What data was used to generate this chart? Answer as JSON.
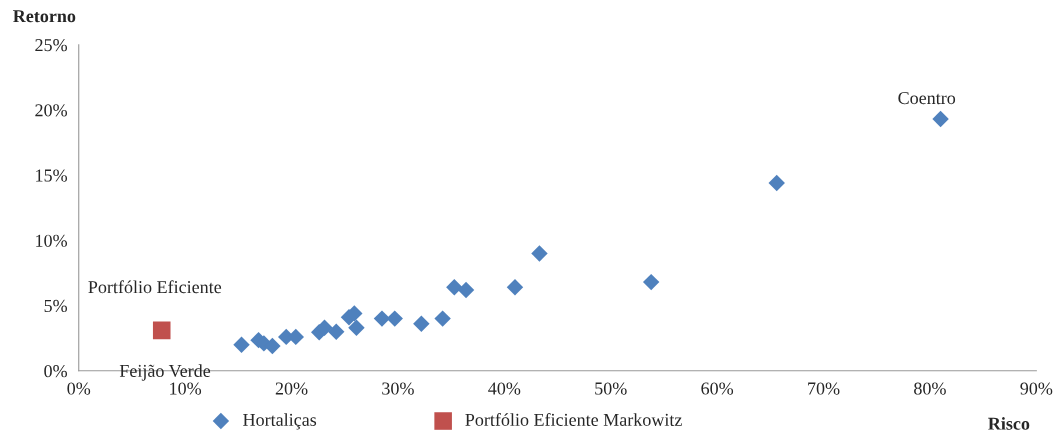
{
  "chart_data": {
    "type": "scatter",
    "xlabel": "Risco",
    "ylabel": "Retorno",
    "legend": "bottom",
    "grid": false,
    "series": [
      {
        "name": "Hortaliças",
        "color": "#4f81bd",
        "marker": "diamond",
        "x": [
          15.3,
          16.9,
          17.4,
          18.2,
          19.5,
          20.4,
          22.6,
          23.1,
          24.2,
          25.4,
          25.9,
          26.1,
          28.5,
          29.7,
          32.2,
          34.2,
          35.3,
          36.4,
          41.0,
          43.3,
          53.8,
          65.6,
          81.0
        ],
        "values": [
          2.0,
          2.35,
          2.1,
          1.9,
          2.6,
          2.6,
          2.95,
          3.3,
          3.0,
          4.1,
          4.4,
          3.3,
          4.0,
          4.0,
          3.6,
          4.0,
          6.4,
          6.2,
          6.4,
          9.0,
          6.8,
          14.4,
          19.3
        ]
      },
      {
        "name": "Portfólio Eficiente Markowitz",
        "color": "#c0504d",
        "marker": "square",
        "x": [
          7.8
        ],
        "values": [
          3.1
        ]
      }
    ],
    "annotations": [
      {
        "text": "Coentro",
        "x": 81.0,
        "y": 19.3
      },
      {
        "text": "Portfólio Eficiente",
        "x": 7.8,
        "y": 3.1
      },
      {
        "text": "Feijão Verde",
        "x": 15.3,
        "y": 2.0
      }
    ],
    "xlim": [
      0,
      90
    ],
    "xticks": [
      {
        "value": 0,
        "label": "0%"
      },
      {
        "value": 10,
        "label": "10%"
      },
      {
        "value": 20,
        "label": "20%"
      },
      {
        "value": 30,
        "label": "30%"
      },
      {
        "value": 40,
        "label": "40%"
      },
      {
        "value": 50,
        "label": "50%"
      },
      {
        "value": 60,
        "label": "60%"
      },
      {
        "value": 70,
        "label": "70%"
      },
      {
        "value": 80,
        "label": "80%"
      },
      {
        "value": 90,
        "label": "90%"
      }
    ],
    "ylim": [
      0,
      25
    ],
    "yticks": [
      {
        "value": 0,
        "label": "0%"
      },
      {
        "value": 5,
        "label": "5%"
      },
      {
        "value": 10,
        "label": "10%"
      },
      {
        "value": 15,
        "label": "15%"
      },
      {
        "value": 20,
        "label": "20%"
      },
      {
        "value": 25,
        "label": "25%"
      }
    ]
  }
}
